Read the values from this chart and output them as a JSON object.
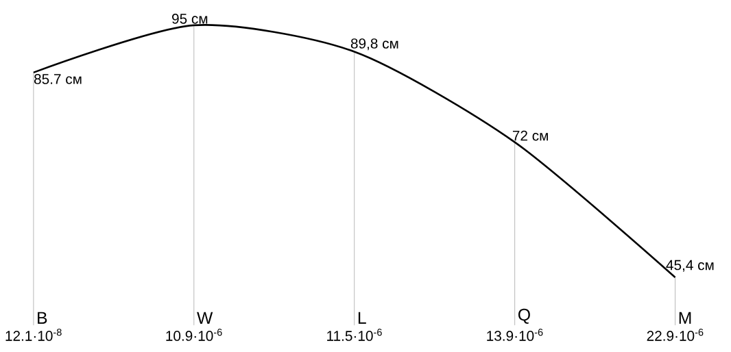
{
  "chart_data": {
    "type": "line",
    "color": "#000000",
    "categories": [
      "12.1·10$^{-8}$",
      "10.9·10$^{-6}$",
      "11.5·10$^{-6}$",
      "13.9·10$^{-6}$",
      "22.9·10$^{-6}$"
    ],
    "values": [
      85.7,
      95,
      89.8,
      72,
      45.4
    ],
    "value_labels": [
      "85.7 см",
      "95 см",
      "89,8 см",
      "72 см",
      "45,4 см"
    ],
    "grid": "x",
    "annotations": [
      "B",
      "W",
      "L",
      "Q",
      "M"
    ]
  }
}
